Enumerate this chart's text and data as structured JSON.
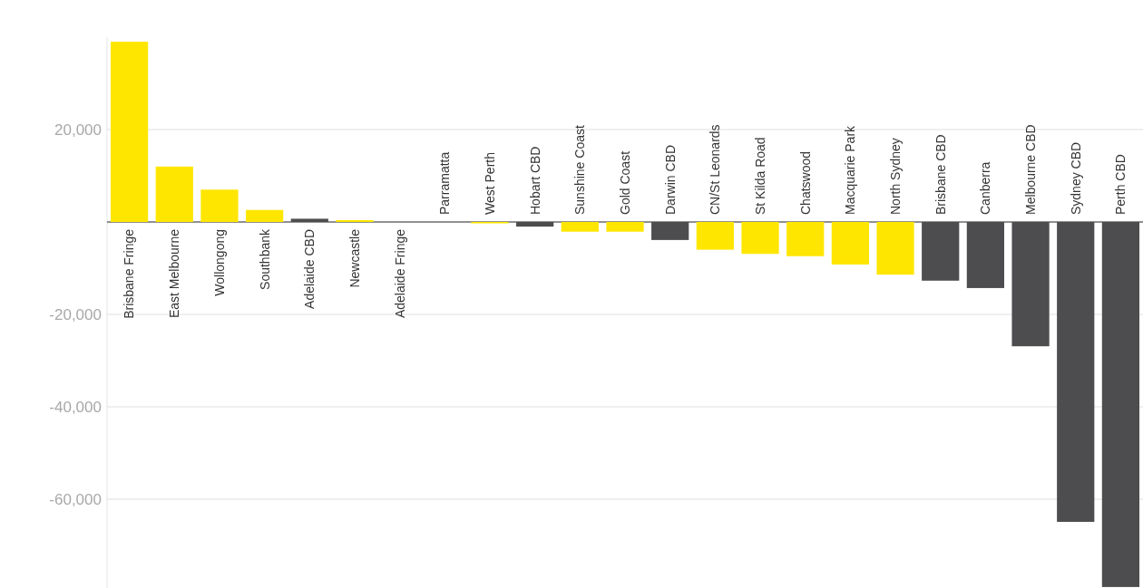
{
  "chart_data": {
    "type": "bar",
    "categories": [
      "Brisbane Fringe",
      "East Melbourne",
      "Wollongong",
      "Southbank",
      "Adelaide CBD",
      "Newcastle",
      "Adelaide Fringe",
      "Parramatta",
      "West Perth",
      "Hobart CBD",
      "Sunshine Coast",
      "Gold Coast",
      "Darwin CBD",
      "CN/St Leonards",
      "St Kilda Road",
      "Chatswood",
      "Macquarie Park",
      "North Sydney",
      "Brisbane CBD",
      "Canberra",
      "Melbourne CBD",
      "Sydney CBD",
      "Perth CBD"
    ],
    "values": [
      39000,
      12000,
      7000,
      2600,
      700,
      400,
      null,
      null,
      -300,
      -1000,
      -2100,
      -2100,
      -3900,
      -6000,
      -6900,
      -7400,
      -9200,
      -11400,
      -12700,
      -14300,
      -26900,
      -64900,
      -79000
    ],
    "colors": [
      "#ffe600",
      "#ffe600",
      "#ffe600",
      "#ffe600",
      "#4d4d4f",
      "#ffe600",
      null,
      null,
      "#ffe600",
      "#4d4d4f",
      "#ffe600",
      "#ffe600",
      "#4d4d4f",
      "#ffe600",
      "#ffe600",
      "#ffe600",
      "#ffe600",
      "#ffe600",
      "#4d4d4f",
      "#4d4d4f",
      "#4d4d4f",
      "#4d4d4f",
      "#4d4d4f"
    ],
    "ylim": [
      -80000,
      40000
    ],
    "yticks": [
      {
        "value": -60000,
        "label": "-60,000"
      },
      {
        "value": -40000,
        "label": "-40,000"
      },
      {
        "value": -20000,
        "label": "-20,000"
      },
      {
        "value": 0,
        "label": null
      },
      {
        "value": 20000,
        "label": "20,000"
      }
    ],
    "grid": "y"
  }
}
